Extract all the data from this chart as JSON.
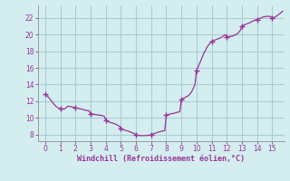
{
  "xlabel": "Windchill (Refroidissement éolien,°C)",
  "bg_color": "#d4eef0",
  "grid_color": "#aacdd4",
  "line_color": "#993399",
  "marker_color": "#993399",
  "xlim": [
    -0.5,
    15.8
  ],
  "ylim": [
    7.2,
    23.5
  ],
  "xticks": [
    0,
    1,
    2,
    3,
    4,
    5,
    6,
    7,
    8,
    9,
    10,
    11,
    12,
    13,
    14,
    15
  ],
  "yticks": [
    8,
    10,
    12,
    14,
    16,
    18,
    20,
    22
  ],
  "x": [
    0.0,
    0.15,
    0.3,
    0.5,
    0.7,
    0.9,
    1.0,
    1.15,
    1.3,
    1.5,
    1.7,
    1.9,
    2.0,
    2.15,
    2.3,
    2.5,
    2.7,
    2.9,
    3.0,
    3.15,
    3.3,
    3.5,
    3.7,
    3.9,
    4.0,
    4.2,
    4.5,
    4.7,
    4.9,
    5.0,
    5.2,
    5.5,
    5.7,
    5.9,
    6.0,
    6.15,
    6.3,
    6.5,
    6.7,
    6.9,
    7.0,
    7.2,
    7.5,
    7.7,
    7.9,
    8.0,
    8.2,
    8.5,
    8.7,
    8.9,
    9.0,
    9.2,
    9.5,
    9.7,
    9.9,
    10.0,
    10.2,
    10.5,
    10.7,
    10.9,
    11.0,
    11.15,
    11.3,
    11.5,
    11.7,
    11.9,
    12.0,
    12.15,
    12.3,
    12.5,
    12.7,
    12.9,
    13.0,
    13.2,
    13.5,
    13.7,
    13.9,
    14.0,
    14.15,
    14.3,
    14.5,
    14.7,
    14.9,
    15.0,
    15.2,
    15.5,
    15.7
  ],
  "y": [
    12.8,
    12.6,
    12.3,
    11.8,
    11.4,
    11.15,
    11.1,
    11.05,
    11.1,
    11.4,
    11.35,
    11.25,
    11.2,
    11.15,
    11.1,
    11.0,
    10.9,
    10.85,
    10.5,
    10.45,
    10.4,
    10.35,
    10.3,
    10.2,
    9.7,
    9.5,
    9.35,
    9.2,
    9.0,
    8.7,
    8.55,
    8.4,
    8.25,
    8.1,
    7.95,
    7.9,
    7.87,
    7.87,
    7.88,
    7.92,
    8.0,
    8.1,
    8.3,
    8.4,
    8.45,
    10.3,
    10.45,
    10.55,
    10.65,
    10.75,
    12.2,
    12.4,
    12.7,
    13.2,
    14.0,
    15.7,
    16.5,
    17.8,
    18.5,
    19.0,
    19.2,
    19.3,
    19.4,
    19.55,
    19.7,
    20.0,
    19.7,
    19.75,
    19.8,
    19.9,
    20.1,
    20.5,
    21.0,
    21.2,
    21.4,
    21.6,
    21.75,
    21.8,
    21.9,
    22.05,
    22.15,
    22.2,
    22.15,
    22.0,
    22.1,
    22.5,
    22.8
  ],
  "marker_x": [
    0,
    1,
    2,
    3,
    4,
    5,
    6,
    7,
    8,
    9,
    10,
    11,
    12,
    13,
    14,
    15
  ],
  "marker_y": [
    12.8,
    11.1,
    11.2,
    10.5,
    9.7,
    8.7,
    7.95,
    8.0,
    10.3,
    12.2,
    15.7,
    19.2,
    19.7,
    21.0,
    21.8,
    22.0
  ]
}
